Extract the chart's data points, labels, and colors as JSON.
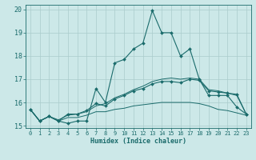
{
  "xlabel": "Humidex (Indice chaleur)",
  "xlim": [
    -0.5,
    23.5
  ],
  "ylim": [
    14.9,
    20.2
  ],
  "yticks": [
    15,
    16,
    17,
    18,
    19,
    20
  ],
  "xticks": [
    0,
    1,
    2,
    3,
    4,
    5,
    6,
    7,
    8,
    9,
    10,
    11,
    12,
    13,
    14,
    15,
    16,
    17,
    18,
    19,
    20,
    21,
    22,
    23
  ],
  "bg_color": "#cce8e8",
  "grid_color": "#aacccc",
  "line_color": "#1a6b6b",
  "line1_y": [
    15.7,
    15.2,
    15.4,
    15.2,
    15.1,
    15.2,
    15.2,
    16.6,
    16.0,
    17.7,
    17.85,
    18.3,
    18.55,
    19.95,
    19.0,
    19.0,
    18.0,
    18.3,
    17.0,
    16.3,
    16.3,
    16.3,
    15.8,
    15.5
  ],
  "line2_y": [
    15.7,
    15.2,
    15.4,
    15.2,
    15.5,
    15.5,
    15.65,
    15.95,
    15.85,
    16.15,
    16.3,
    16.5,
    16.6,
    16.8,
    16.9,
    16.9,
    16.85,
    17.0,
    16.95,
    16.5,
    16.45,
    16.4,
    16.35,
    15.5
  ],
  "line3_y": [
    15.7,
    15.2,
    15.4,
    15.2,
    15.35,
    15.35,
    15.45,
    15.6,
    15.6,
    15.7,
    15.75,
    15.85,
    15.9,
    15.95,
    16.0,
    16.0,
    16.0,
    16.0,
    15.95,
    15.85,
    15.7,
    15.65,
    15.55,
    15.45
  ],
  "line4_y": [
    15.7,
    15.2,
    15.4,
    15.25,
    15.45,
    15.5,
    15.6,
    15.85,
    15.95,
    16.2,
    16.35,
    16.55,
    16.7,
    16.9,
    17.0,
    17.05,
    17.0,
    17.05,
    17.0,
    16.55,
    16.5,
    16.4,
    16.3,
    15.5
  ]
}
